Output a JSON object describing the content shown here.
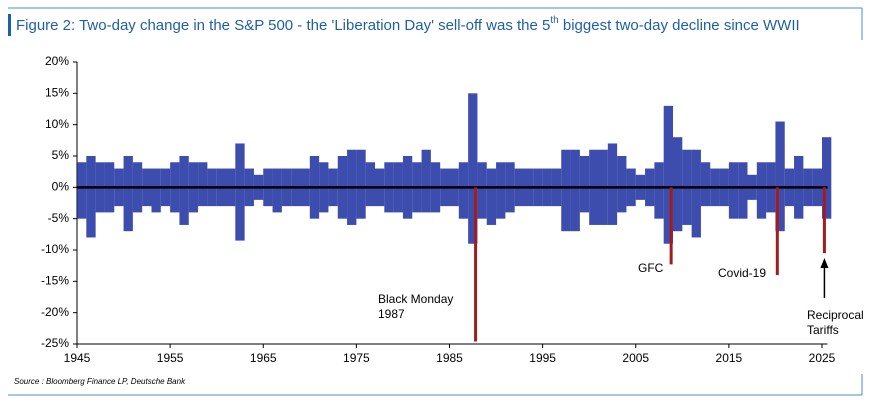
{
  "chart_data": {
    "type": "range-bar",
    "title": [
      "Figure 2: Two-day change in the S&P 500 - the 'Liberation Day' sell-off was the 5",
      "th",
      " biggest two-day decline since WWII"
    ],
    "source": "Source : Bloomberg Finance LP, Deutsche Bank",
    "color": "#1a2ea0",
    "event_color": "#a31c1c",
    "x": [
      1945,
      1946,
      1947,
      1948,
      1949,
      1950,
      1951,
      1952,
      1953,
      1954,
      1955,
      1956,
      1957,
      1958,
      1959,
      1960,
      1961,
      1962,
      1963,
      1964,
      1965,
      1966,
      1967,
      1968,
      1969,
      1970,
      1971,
      1972,
      1973,
      1974,
      1975,
      1976,
      1977,
      1978,
      1979,
      1980,
      1981,
      1982,
      1983,
      1984,
      1985,
      1986,
      1987,
      1988,
      1989,
      1990,
      1991,
      1992,
      1993,
      1994,
      1995,
      1996,
      1997,
      1998,
      1999,
      2000,
      2001,
      2002,
      2003,
      2004,
      2005,
      2006,
      2007,
      2008,
      2009,
      2010,
      2011,
      2012,
      2013,
      2014,
      2015,
      2016,
      2017,
      2018,
      2019,
      2020,
      2021,
      2022,
      2023,
      2024,
      2025
    ],
    "high": [
      4,
      5,
      4,
      4,
      3,
      5,
      4,
      3,
      3,
      3,
      4,
      5,
      4,
      4,
      3,
      3,
      3,
      7,
      3,
      2,
      3,
      3,
      3,
      3,
      3,
      5,
      4,
      3,
      5,
      6,
      6,
      4,
      3,
      4,
      4,
      5,
      4,
      6,
      4,
      3,
      3,
      4,
      15,
      4,
      3,
      4,
      4,
      3,
      3,
      3,
      3,
      3,
      6,
      6,
      5,
      6,
      6,
      7,
      5,
      3,
      2,
      3,
      4,
      13,
      8,
      6,
      6,
      4,
      3,
      3,
      4,
      4,
      2,
      4,
      4,
      10.5,
      3,
      5,
      3,
      3,
      8
    ],
    "low": [
      -5,
      -8,
      -4,
      -4,
      -3,
      -7,
      -4,
      -3,
      -4,
      -3,
      -4,
      -6,
      -4,
      -3,
      -3,
      -3,
      -3,
      -8.5,
      -3,
      -2,
      -3,
      -4,
      -3,
      -3,
      -3,
      -5,
      -4,
      -3,
      -5,
      -6,
      -5,
      -3,
      -3,
      -4,
      -4,
      -5,
      -4,
      -4,
      -4,
      -3,
      -3,
      -5,
      -9,
      -5,
      -6,
      -5,
      -4,
      -3,
      -3,
      -3,
      -3,
      -3,
      -7,
      -7,
      -4,
      -6,
      -6,
      -6,
      -4,
      -3,
      -2,
      -3,
      -5,
      -9,
      -7,
      -6,
      -8,
      -3,
      -3,
      -3,
      -5,
      -5,
      -2,
      -5,
      -4,
      -7,
      -3,
      -5,
      -3,
      -3,
      -5
    ],
    "events": [
      {
        "x": 1987.8,
        "value": -24.6,
        "label": [
          "Black Monday",
          "1987"
        ]
      },
      {
        "x": 2008.8,
        "value": -12.3,
        "label": [
          "GFC"
        ]
      },
      {
        "x": 2020.2,
        "value": -14,
        "label": [
          "Covid-19"
        ]
      },
      {
        "x": 2025.26,
        "value": -10.5,
        "label": [
          "Reciprocal",
          "Tariffs"
        ]
      }
    ],
    "xlim": [
      1945,
      2025.6
    ],
    "xticks": [
      1945,
      1955,
      1965,
      1975,
      1985,
      1995,
      2005,
      2015,
      2025
    ],
    "ylim": [
      -25,
      20
    ],
    "yticks": [
      {
        "value": 20,
        "label": "20%"
      },
      {
        "value": 15,
        "label": "15%"
      },
      {
        "value": 10,
        "label": "10%"
      },
      {
        "value": 5,
        "label": "5%"
      },
      {
        "value": 0,
        "label": "0%"
      },
      {
        "value": -5,
        "label": "-5%"
      },
      {
        "value": -10,
        "label": "-10%"
      },
      {
        "value": -15,
        "label": "-15%"
      },
      {
        "value": -20,
        "label": "-20%"
      },
      {
        "value": -25,
        "label": "-25%"
      }
    ]
  }
}
